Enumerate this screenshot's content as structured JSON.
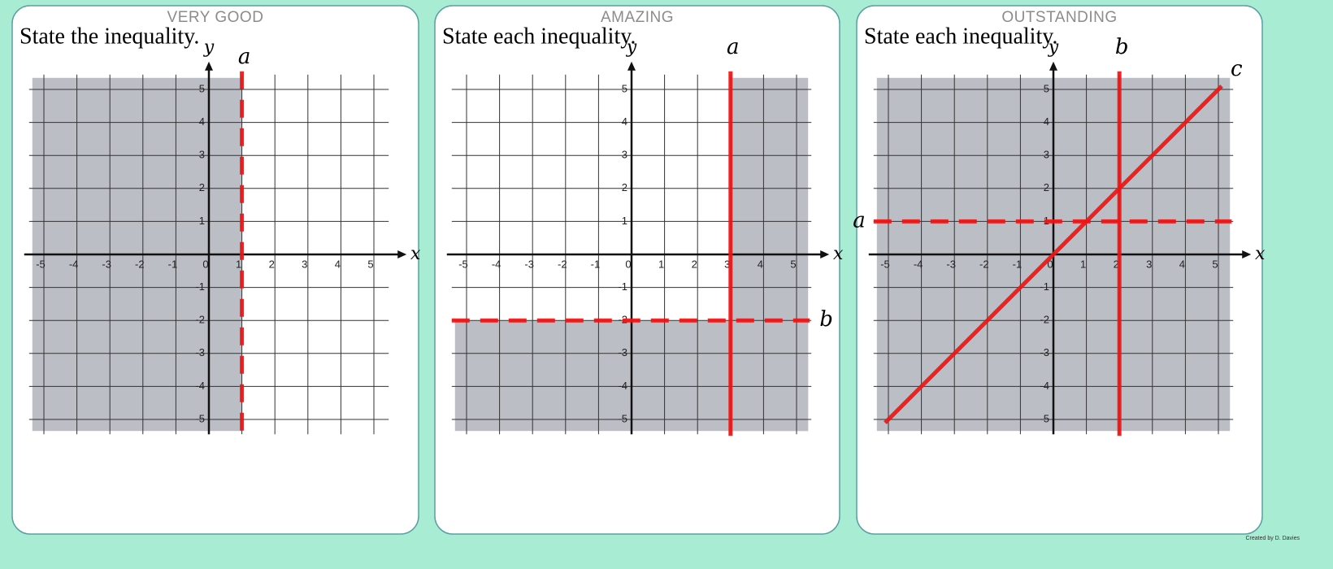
{
  "panels": [
    {
      "level": "VERY GOOD",
      "instruction": "State the inequality.",
      "x_label": "x",
      "y_label": "y",
      "xticks": [
        -5,
        -4,
        -3,
        -2,
        -1,
        0,
        1,
        2,
        3,
        4,
        5
      ],
      "yticks": [
        -5,
        -4,
        -3,
        -2,
        -1,
        1,
        2,
        3,
        4,
        5
      ],
      "lines": [
        {
          "label": "a",
          "x": 1,
          "dashed": true,
          "shade": "left"
        }
      ]
    },
    {
      "level": "AMAZING",
      "instruction": "State each inequality.",
      "x_label": "x",
      "y_label": "y",
      "xticks": [
        -5,
        -4,
        -3,
        -2,
        -1,
        0,
        1,
        2,
        3,
        4,
        5
      ],
      "yticks": [
        -5,
        -4,
        -3,
        -2,
        -1,
        1,
        2,
        3,
        4,
        5
      ],
      "lines": [
        {
          "label": "a",
          "x": 3,
          "dashed": false,
          "shade": "right"
        },
        {
          "label": "b",
          "y": -2,
          "dashed": true,
          "shade": "below",
          "label_at": "end"
        }
      ]
    },
    {
      "level": "OUTSTANDING",
      "instruction": "State each inequality.",
      "x_label": "x",
      "y_label": "y",
      "xticks": [
        -5,
        -4,
        -3,
        -2,
        -1,
        0,
        1,
        2,
        3,
        4,
        5
      ],
      "yticks": [
        -5,
        -4,
        -3,
        -2,
        -1,
        1,
        2,
        3,
        4,
        5
      ],
      "shade_all": true,
      "lines": [
        {
          "label": "a",
          "y": 1,
          "dashed": true,
          "label_at": "start"
        },
        {
          "label": "b",
          "x": 2,
          "dashed": false
        },
        {
          "label": "c",
          "slope": 1,
          "intercept": 0,
          "dashed": false
        }
      ]
    }
  ],
  "credit": "Created by D. Davies"
}
